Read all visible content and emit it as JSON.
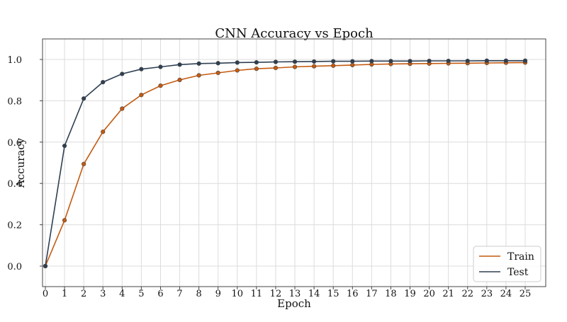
{
  "chart_data": {
    "type": "line",
    "title": "CNN Accuracy vs Epoch",
    "xlabel": "Epoch",
    "ylabel": "Accuracy",
    "x": [
      0,
      1,
      2,
      3,
      4,
      5,
      6,
      7,
      8,
      9,
      10,
      11,
      12,
      13,
      14,
      15,
      16,
      17,
      18,
      19,
      20,
      21,
      22,
      23,
      24,
      25
    ],
    "xlim": [
      0,
      25
    ],
    "ylim": [
      -0.1,
      1.1
    ],
    "xticks": [
      0,
      1,
      2,
      3,
      4,
      5,
      6,
      7,
      8,
      9,
      10,
      11,
      12,
      13,
      14,
      15,
      16,
      17,
      18,
      19,
      20,
      21,
      22,
      23,
      24,
      25
    ],
    "yticks": [
      "0.0",
      "0.2",
      "0.4",
      "0.6",
      "0.8",
      "1.0"
    ],
    "grid": true,
    "legend_position": "bottom-right",
    "series": [
      {
        "name": "Train",
        "color": "#c45a10",
        "values": [
          0.0,
          0.222,
          0.494,
          0.65,
          0.762,
          0.828,
          0.873,
          0.901,
          0.923,
          0.935,
          0.947,
          0.955,
          0.959,
          0.964,
          0.967,
          0.97,
          0.973,
          0.976,
          0.978,
          0.979,
          0.98,
          0.981,
          0.982,
          0.983,
          0.984,
          0.985
        ]
      },
      {
        "name": "Test",
        "color": "#2e3f52",
        "values": [
          0.0,
          0.582,
          0.811,
          0.89,
          0.93,
          0.953,
          0.964,
          0.975,
          0.98,
          0.982,
          0.985,
          0.986,
          0.988,
          0.989,
          0.99,
          0.991,
          0.991,
          0.992,
          0.992,
          0.992,
          0.993,
          0.993,
          0.993,
          0.994,
          0.994,
          0.994
        ]
      }
    ]
  }
}
